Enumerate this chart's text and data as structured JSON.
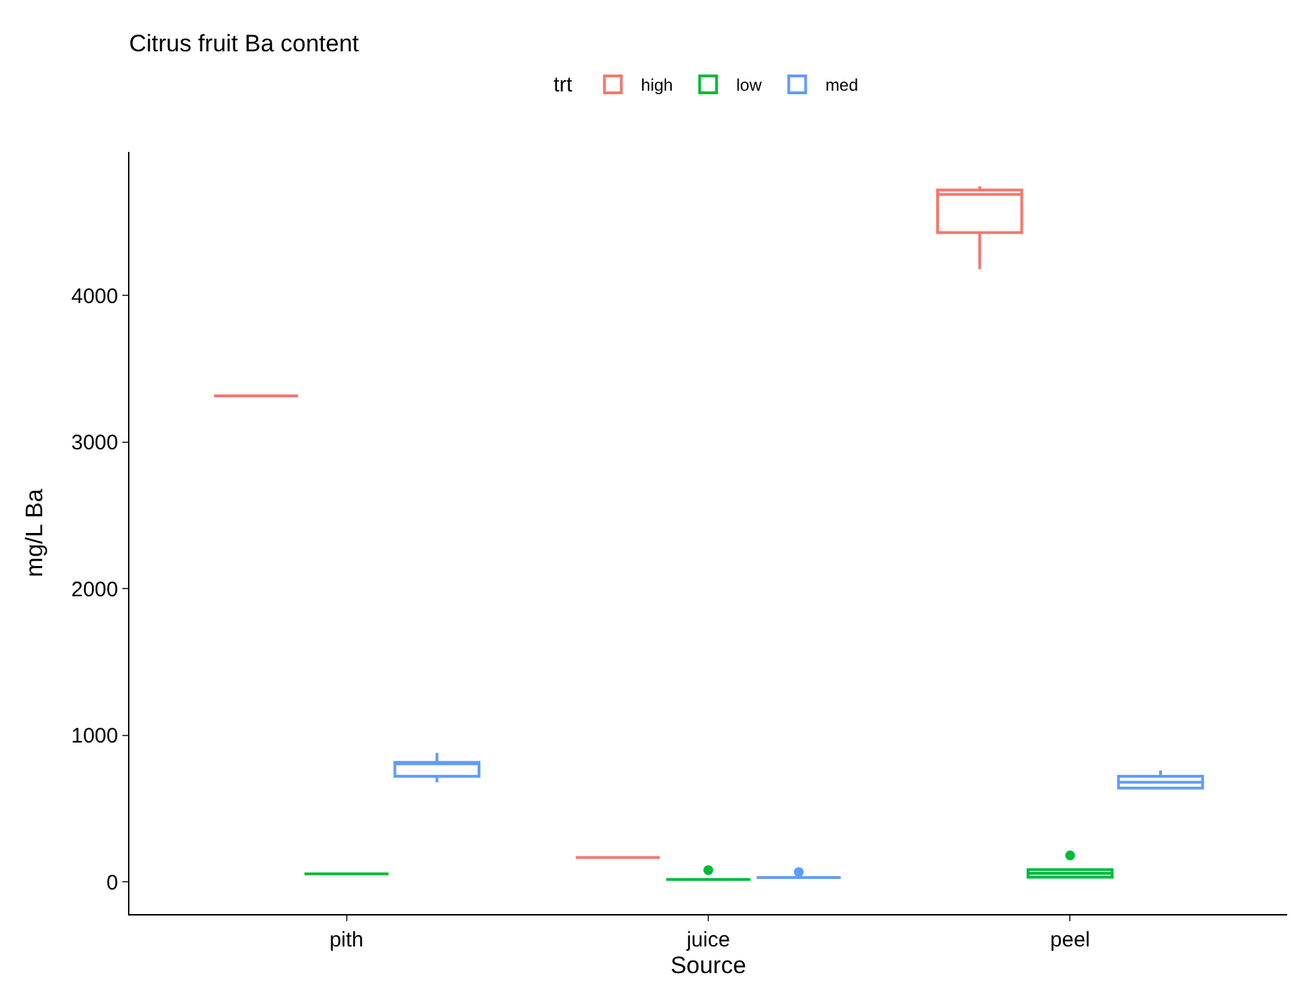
{
  "chart_data": {
    "type": "box",
    "title": "Citrus fruit Ba content",
    "xlabel": "Source",
    "ylabel": "mg/L Ba",
    "legend_title": "trt",
    "legend": "top",
    "categories": [
      "pith",
      "juice",
      "peel"
    ],
    "ylim": [
      -220,
      4980
    ],
    "yticks": [
      0,
      1000,
      2000,
      3000,
      4000
    ],
    "series": [
      {
        "name": "high",
        "color": "#f8766d",
        "boxes": [
          {
            "low": 3315,
            "q1": 3315,
            "median": 3315,
            "q3": 3315,
            "high": 3315
          },
          {
            "low": 166,
            "q1": 166,
            "median": 166,
            "q3": 166,
            "high": 166
          },
          {
            "low": 4180,
            "q1": 4430,
            "median": 4690,
            "q3": 4720,
            "high": 4745
          }
        ]
      },
      {
        "name": "low",
        "color": "#00ba38",
        "boxes": [
          {
            "low": 55,
            "q1": 55,
            "median": 55,
            "q3": 55,
            "high": 55
          },
          {
            "low": 16,
            "q1": 16,
            "median": 16,
            "q3": 16,
            "high": 16,
            "outliers": [
              80
            ]
          },
          {
            "low": 30,
            "q1": 32,
            "median": 58,
            "q3": 83,
            "high": 85,
            "outliers": [
              180
            ]
          }
        ]
      },
      {
        "name": "med",
        "color": "#619cff",
        "boxes": [
          {
            "low": 680,
            "q1": 720,
            "median": 805,
            "q3": 815,
            "high": 880
          },
          {
            "low": 30,
            "q1": 30,
            "median": 30,
            "q3": 30,
            "high": 30,
            "outliers": [
              67
            ]
          },
          {
            "low": 630,
            "q1": 640,
            "median": 680,
            "q3": 720,
            "high": 760
          }
        ]
      }
    ]
  }
}
